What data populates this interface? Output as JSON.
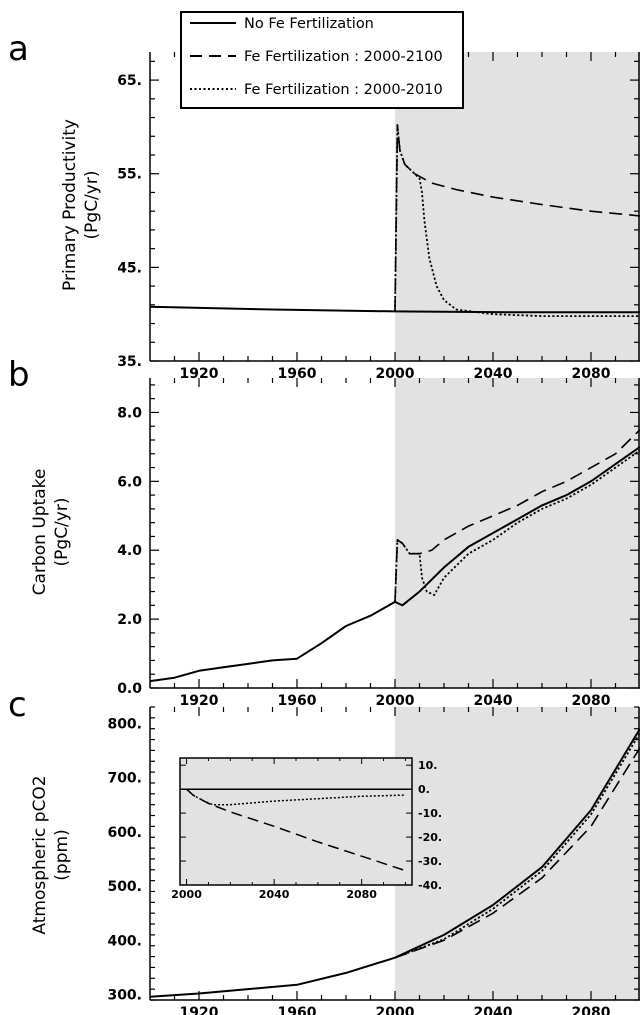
{
  "legend": [
    {
      "label": "No Fe Fertilization",
      "style": "solid"
    },
    {
      "label": "Fe Fertilization : 2000-2100",
      "style": "dashed"
    },
    {
      "label": "Fe Fertilization : 2000-2010",
      "style": "dotted"
    }
  ],
  "colors": {
    "shade": "#e2e2e2",
    "line": "#000000"
  },
  "chart_data": [
    {
      "type": "line",
      "panel": "a",
      "ylabel": [
        "Primary Productivity",
        "(PgC/yr)"
      ],
      "xlim": [
        1900,
        2100
      ],
      "ylim": [
        35,
        68
      ],
      "xticks": [
        1920,
        1960,
        2000,
        2040,
        2080
      ],
      "yticks": [
        35,
        45,
        55,
        65
      ],
      "ytick_labels": [
        "35.",
        "45.",
        "55.",
        "65."
      ],
      "shaded_region": [
        2000,
        2100
      ],
      "series": [
        {
          "name": "No Fe Fertilization",
          "style": "solid",
          "x": [
            1900,
            1950,
            2000,
            2050,
            2100
          ],
          "y": [
            40.8,
            40.5,
            40.3,
            40.2,
            40.2
          ]
        },
        {
          "name": "Fe Fertilization : 2000-2100",
          "style": "dashed",
          "x": [
            2000,
            2001,
            2002,
            2004,
            2008,
            2015,
            2025,
            2040,
            2060,
            2080,
            2100
          ],
          "y": [
            40.3,
            60.2,
            57.5,
            56.0,
            55.0,
            54.0,
            53.3,
            52.5,
            51.7,
            51.0,
            50.5
          ]
        },
        {
          "name": "Fe Fertilization : 2000-2010",
          "style": "dotted",
          "x": [
            2000,
            2001,
            2002,
            2004,
            2008,
            2010,
            2011,
            2012,
            2014,
            2017,
            2020,
            2025,
            2040,
            2060,
            2080,
            2100
          ],
          "y": [
            40.3,
            60.2,
            57.5,
            56.0,
            55.0,
            54.5,
            53.0,
            50.0,
            46.0,
            43.0,
            41.5,
            40.5,
            40.0,
            39.8,
            39.8,
            39.8
          ]
        }
      ]
    },
    {
      "type": "line",
      "panel": "b",
      "ylabel": [
        "Carbon Uptake",
        "(PgC/yr)"
      ],
      "xlim": [
        1900,
        2100
      ],
      "ylim": [
        0,
        9
      ],
      "xticks": [
        1920,
        1960,
        2000,
        2040,
        2080
      ],
      "yticks": [
        0,
        2,
        4,
        6,
        8
      ],
      "ytick_labels": [
        "0.0",
        "2.0",
        "4.0",
        "6.0",
        "8.0"
      ],
      "shaded_region": [
        2000,
        2100
      ],
      "series": [
        {
          "name": "No Fe Fertilization",
          "style": "solid",
          "x": [
            1900,
            1910,
            1920,
            1930,
            1940,
            1950,
            1960,
            1970,
            1980,
            1990,
            1995,
            2000,
            2003,
            2010,
            2020,
            2030,
            2040,
            2050,
            2060,
            2070,
            2080,
            2090,
            2100
          ],
          "y": [
            0.2,
            0.3,
            0.5,
            0.6,
            0.7,
            0.8,
            0.85,
            1.3,
            1.8,
            2.1,
            2.3,
            2.5,
            2.4,
            2.8,
            3.5,
            4.1,
            4.5,
            4.9,
            5.3,
            5.6,
            6.0,
            6.5,
            7.0
          ]
        },
        {
          "name": "Fe Fertilization : 2000-2100",
          "style": "dashed",
          "x": [
            2000,
            2001,
            2003,
            2006,
            2010,
            2015,
            2020,
            2030,
            2040,
            2050,
            2060,
            2070,
            2080,
            2090,
            2100
          ],
          "y": [
            2.5,
            4.3,
            4.2,
            3.9,
            3.9,
            4.0,
            4.3,
            4.7,
            5.0,
            5.3,
            5.7,
            6.0,
            6.4,
            6.8,
            7.5
          ]
        },
        {
          "name": "Fe Fertilization : 2000-2010",
          "style": "dotted",
          "x": [
            2000,
            2001,
            2003,
            2006,
            2010,
            2011,
            2013,
            2016,
            2020,
            2030,
            2040,
            2050,
            2060,
            2070,
            2080,
            2090,
            2100
          ],
          "y": [
            2.5,
            4.3,
            4.2,
            3.9,
            3.9,
            3.2,
            2.8,
            2.7,
            3.2,
            3.9,
            4.3,
            4.8,
            5.2,
            5.5,
            5.9,
            6.4,
            6.9
          ]
        }
      ]
    },
    {
      "type": "line",
      "panel": "c",
      "ylabel": [
        "Atmospheric pCO2",
        "(ppm)"
      ],
      "xlim": [
        1900,
        2100
      ],
      "ylim": [
        290,
        830
      ],
      "xticks": [
        1920,
        1960,
        2000,
        2040,
        2080
      ],
      "yticks": [
        300,
        400,
        500,
        600,
        700,
        800
      ],
      "ytick_labels": [
        "300.",
        "400.",
        "500.",
        "600.",
        "700.",
        "800."
      ],
      "shaded_region": [
        2000,
        2100
      ],
      "series": [
        {
          "name": "No Fe Fertilization",
          "style": "solid",
          "x": [
            1900,
            1920,
            1940,
            1960,
            1980,
            2000,
            2020,
            2040,
            2060,
            2080,
            2100
          ],
          "y": [
            296,
            302,
            310,
            318,
            340,
            368,
            410,
            465,
            535,
            640,
            790
          ]
        },
        {
          "name": "Fe Fertilization : 2000-2100",
          "style": "dashed",
          "x": [
            2000,
            2020,
            2040,
            2060,
            2080,
            2100
          ],
          "y": [
            368,
            400,
            450,
            515,
            610,
            755
          ]
        },
        {
          "name": "Fe Fertilization : 2000-2010",
          "style": "dotted",
          "x": [
            2000,
            2020,
            2040,
            2060,
            2080,
            2100
          ],
          "y": [
            368,
            402,
            458,
            528,
            632,
            782
          ]
        }
      ],
      "inset": {
        "xlim": [
          1997,
          2103
        ],
        "ylim": [
          -40,
          13
        ],
        "xticks": [
          2000,
          2040,
          2080
        ],
        "yticks": [
          10,
          0,
          -10,
          -20,
          -30,
          -40
        ],
        "ytick_labels": [
          "10.",
          "0.",
          "-10.",
          "-20.",
          "-30.",
          "-40."
        ],
        "series": [
          {
            "name": "No Fe Fertilization",
            "style": "solid",
            "x": [
              1997,
              2103
            ],
            "y": [
              0,
              0
            ]
          },
          {
            "name": "Fe Fertilization : 2000-2100",
            "style": "dashed",
            "x": [
              2000,
              2003,
              2010,
              2020,
              2040,
              2060,
              2080,
              2100
            ],
            "y": [
              0,
              -2.5,
              -6,
              -9.5,
              -15.5,
              -22,
              -28,
              -34
            ]
          },
          {
            "name": "Fe Fertilization : 2000-2010",
            "style": "dotted",
            "x": [
              2000,
              2003,
              2008,
              2012,
              2020,
              2040,
              2060,
              2080,
              2100
            ],
            "y": [
              0,
              -2.5,
              -5,
              -6.5,
              -6.5,
              -5,
              -4,
              -3,
              -2.5
            ]
          }
        ]
      }
    }
  ]
}
